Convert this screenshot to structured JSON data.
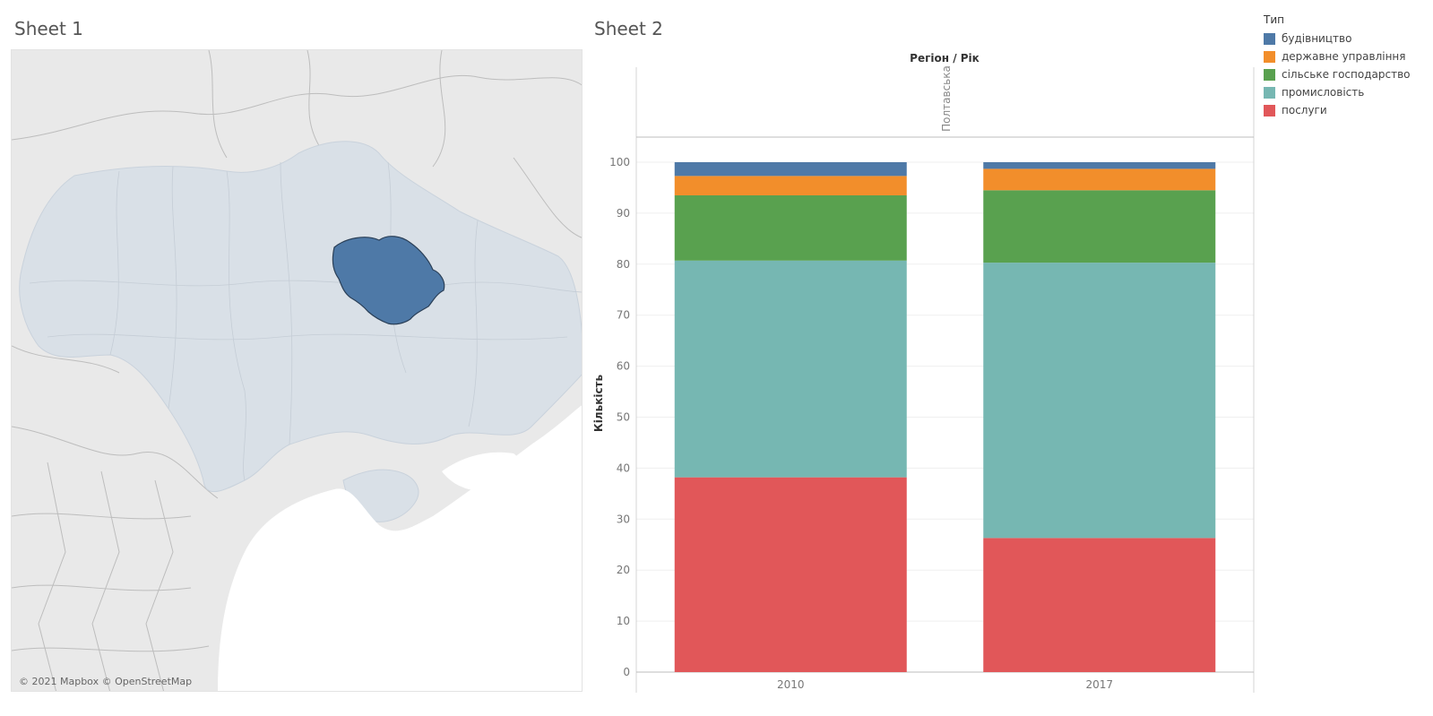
{
  "sheets": {
    "sheet1_title": "Sheet 1",
    "sheet2_title": "Sheet 2"
  },
  "map": {
    "credit": "© 2021 Mapbox © OpenStreetMap",
    "highlight_color": "#4e79a7",
    "country_color": "#d9e0e7",
    "land_color": "#e9e9e9",
    "sea_color": "#ffffff"
  },
  "legend": {
    "title": "Тип",
    "items": [
      {
        "label": "будівництво",
        "color": "#4e79a7"
      },
      {
        "label": "державне управління",
        "color": "#f28e2b"
      },
      {
        "label": "сільське господарство",
        "color": "#59a14f"
      },
      {
        "label": "промисловість",
        "color": "#76b7b2"
      },
      {
        "label": "послуги",
        "color": "#e15759"
      }
    ]
  },
  "chart_data": {
    "type": "bar",
    "stacked": true,
    "header": "Регіон / Рік",
    "region": "Полтавська",
    "ylabel": "Кількість",
    "xlabel": "",
    "ylim": [
      0,
      100
    ],
    "yticks": [
      0,
      10,
      20,
      30,
      40,
      50,
      60,
      70,
      80,
      90,
      100
    ],
    "categories": [
      "2010",
      "2017"
    ],
    "grid": true,
    "legend_position": "top-right",
    "series": [
      {
        "name": "послуги",
        "color": "#e15759",
        "values": [
          38.2,
          26.3
        ]
      },
      {
        "name": "промисловість",
        "color": "#76b7b2",
        "values": [
          42.5,
          54.0
        ]
      },
      {
        "name": "сільське господарство",
        "color": "#59a14f",
        "values": [
          12.8,
          14.2
        ]
      },
      {
        "name": "державне управління",
        "color": "#f28e2b",
        "values": [
          3.8,
          4.2
        ]
      },
      {
        "name": "будівництво",
        "color": "#4e79a7",
        "values": [
          2.7,
          1.3
        ]
      }
    ]
  }
}
